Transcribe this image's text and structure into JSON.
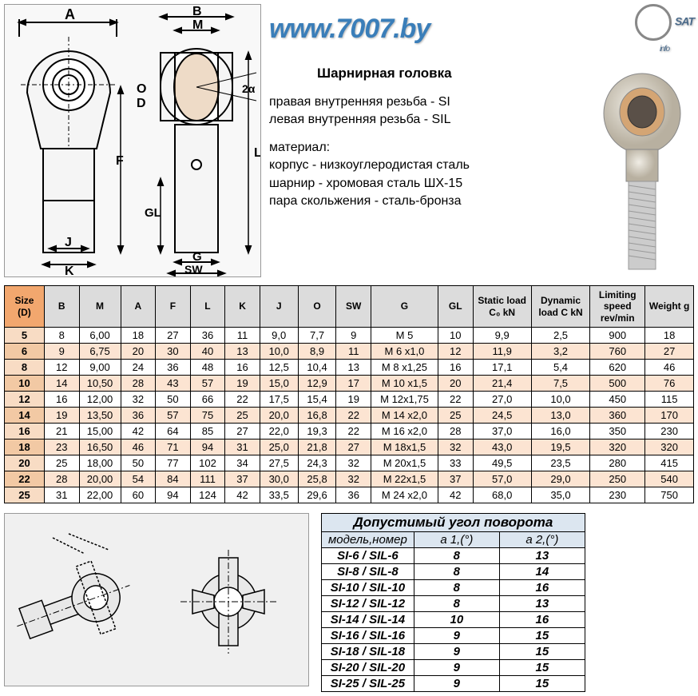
{
  "header": {
    "url": "www.7007.by",
    "logo_text": "SAT",
    "logo_sub": "info"
  },
  "title": "Шарнирная головка",
  "desc1": "правая внутренняя резьба - SI",
  "desc2": "левая внутренняя резьба - SIL",
  "mat_label": "материал:",
  "mat1": "корпус - низкоуглеродистая сталь",
  "mat2": "шарнир - хромовая сталь ШХ-15",
  "mat3": "пара скольжения - сталь-бронза",
  "diagram_labels": {
    "A": "A",
    "B": "B",
    "M": "M",
    "O": "O",
    "D": "D",
    "alpha": "2α",
    "L": "L",
    "F": "F",
    "GL": "GL",
    "J": "J",
    "K": "K",
    "G": "G",
    "SW": "SW"
  },
  "table": {
    "headers": [
      "Size (D)",
      "B",
      "M",
      "A",
      "F",
      "L",
      "K",
      "J",
      "O",
      "SW",
      "G",
      "GL",
      "Static load C₀ kN",
      "Dynamic load C kN",
      "Limiting speed rev/min",
      "Weight g"
    ],
    "col_widths": [
      "40",
      "34",
      "42",
      "34",
      "34",
      "34",
      "34",
      "38",
      "38",
      "34",
      "72",
      "34",
      "62",
      "62",
      "58",
      "50"
    ],
    "rows": [
      {
        "peach": false,
        "cells": [
          "5",
          "8",
          "6,00",
          "18",
          "27",
          "36",
          "11",
          "9,0",
          "7,7",
          "9",
          "M 5",
          "10",
          "9,9",
          "2,5",
          "900",
          "18"
        ]
      },
      {
        "peach": true,
        "cells": [
          "6",
          "9",
          "6,75",
          "20",
          "30",
          "40",
          "13",
          "10,0",
          "8,9",
          "11",
          "M 6 x1,0",
          "12",
          "11,9",
          "3,2",
          "760",
          "27"
        ]
      },
      {
        "peach": false,
        "cells": [
          "8",
          "12",
          "9,00",
          "24",
          "36",
          "48",
          "16",
          "12,5",
          "10,4",
          "13",
          "M 8 x1,25",
          "16",
          "17,1",
          "5,4",
          "620",
          "46"
        ]
      },
      {
        "peach": true,
        "cells": [
          "10",
          "14",
          "10,50",
          "28",
          "43",
          "57",
          "19",
          "15,0",
          "12,9",
          "17",
          "M 10 x1,5",
          "20",
          "21,4",
          "7,5",
          "500",
          "76"
        ]
      },
      {
        "peach": false,
        "cells": [
          "12",
          "16",
          "12,00",
          "32",
          "50",
          "66",
          "22",
          "17,5",
          "15,4",
          "19",
          "M 12x1,75",
          "22",
          "27,0",
          "10,0",
          "450",
          "115"
        ]
      },
      {
        "peach": true,
        "cells": [
          "14",
          "19",
          "13,50",
          "36",
          "57",
          "75",
          "25",
          "20,0",
          "16,8",
          "22",
          "M 14 x2,0",
          "25",
          "24,5",
          "13,0",
          "360",
          "170"
        ]
      },
      {
        "peach": false,
        "cells": [
          "16",
          "21",
          "15,00",
          "42",
          "64",
          "85",
          "27",
          "22,0",
          "19,3",
          "22",
          "M 16 x2,0",
          "28",
          "37,0",
          "16,0",
          "350",
          "230"
        ]
      },
      {
        "peach": true,
        "cells": [
          "18",
          "23",
          "16,50",
          "46",
          "71",
          "94",
          "31",
          "25,0",
          "21,8",
          "27",
          "M 18x1,5",
          "32",
          "43,0",
          "19,5",
          "320",
          "320"
        ]
      },
      {
        "peach": false,
        "cells": [
          "20",
          "25",
          "18,00",
          "50",
          "77",
          "102",
          "34",
          "27,5",
          "24,3",
          "32",
          "M 20x1,5",
          "33",
          "49,5",
          "23,5",
          "280",
          "415"
        ]
      },
      {
        "peach": true,
        "cells": [
          "22",
          "28",
          "20,00",
          "54",
          "84",
          "111",
          "37",
          "30,0",
          "25,8",
          "32",
          "M 22x1,5",
          "37",
          "57,0",
          "29,0",
          "250",
          "540"
        ]
      },
      {
        "peach": false,
        "cells": [
          "25",
          "31",
          "22,00",
          "60",
          "94",
          "124",
          "42",
          "33,5",
          "29,6",
          "36",
          "M 24 x2,0",
          "42",
          "68,0",
          "35,0",
          "230",
          "750"
        ]
      }
    ]
  },
  "angle_table": {
    "title": "Допустимый угол поворота",
    "h_model": "модель,номер",
    "h_a1": "a 1,(°)",
    "h_a2": "a 2,(°)",
    "rows": [
      {
        "model": "SI-6  / SIL-6",
        "a1": "8",
        "a2": "13"
      },
      {
        "model": "SI-8  / SIL-8",
        "a1": "8",
        "a2": "14"
      },
      {
        "model": "SI-10  / SIL-10",
        "a1": "8",
        "a2": "16"
      },
      {
        "model": "SI-12  / SIL-12",
        "a1": "8",
        "a2": "13"
      },
      {
        "model": "SI-14  / SIL-14",
        "a1": "10",
        "a2": "16"
      },
      {
        "model": "SI-16  / SIL-16",
        "a1": "9",
        "a2": "15"
      },
      {
        "model": "SI-18  / SIL-18",
        "a1": "9",
        "a2": "15"
      },
      {
        "model": "SI-20  / SIL-20",
        "a1": "9",
        "a2": "15"
      },
      {
        "model": "SI-25  / SIL-25",
        "a1": "9",
        "a2": "15"
      }
    ]
  },
  "colors": {
    "header_orange": "#f2a76e",
    "header_gray": "#dcdcdc",
    "row_peach": "#fce4d2",
    "url_blue": "#3a7eb9",
    "angle_bg": "#dce6f0"
  }
}
